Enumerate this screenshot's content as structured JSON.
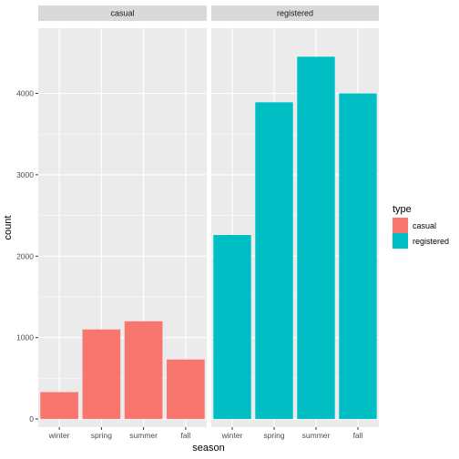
{
  "chart_data": {
    "type": "bar",
    "title": "",
    "xlabel": "season",
    "ylabel": "count",
    "categories": [
      "winter",
      "spring",
      "summer",
      "fall"
    ],
    "ylim": [
      -100,
      4800
    ],
    "yticks": [
      0,
      1000,
      2000,
      3000,
      4000
    ],
    "ytick_labels": [
      "0",
      "1000",
      "2000",
      "3000",
      "4000"
    ],
    "facets": [
      {
        "name": "casual",
        "fill_series": "casual"
      },
      {
        "name": "registered",
        "fill_series": "registered"
      }
    ],
    "series": [
      {
        "name": "casual",
        "color": "#F8766D",
        "values": [
          330,
          1100,
          1200,
          730
        ]
      },
      {
        "name": "registered",
        "color": "#00BFC4",
        "values": [
          2260,
          3890,
          4450,
          4000
        ]
      }
    ],
    "legend": {
      "title": "type",
      "position": "right",
      "entries": [
        "casual",
        "registered"
      ]
    },
    "grid": true,
    "panel_background": "#EBEBEB",
    "strip_background": "#D9D9D9"
  }
}
